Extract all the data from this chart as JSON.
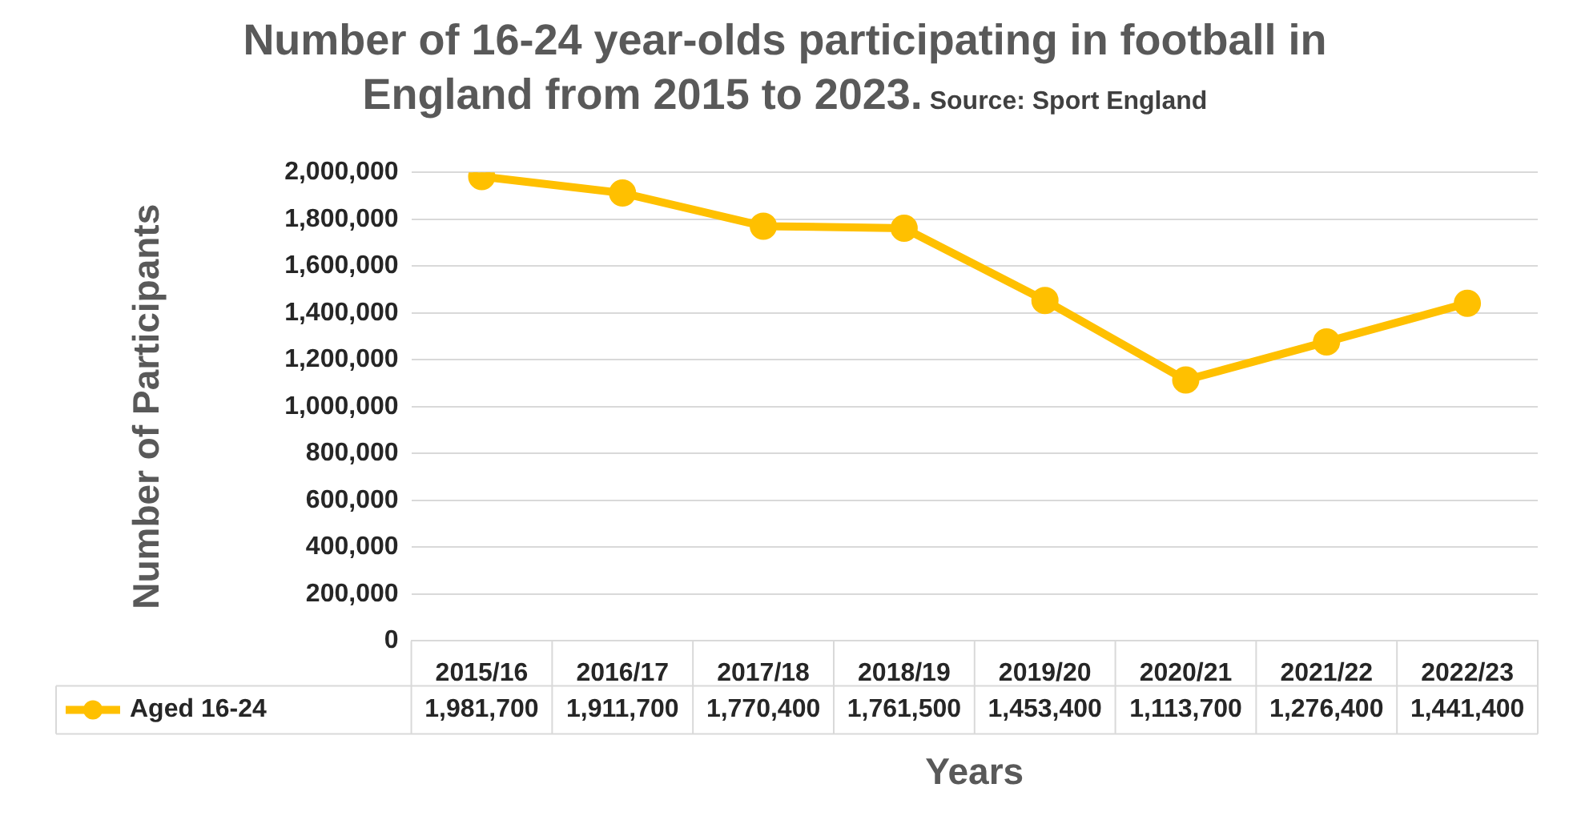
{
  "chart_data": {
    "type": "line",
    "title": "Number of 16-24 year-olds participating in football in England from 2015 to 2023.",
    "annotations": [
      "Source: Sport England"
    ],
    "xlabel": "Years",
    "ylabel": "Number of Participants",
    "categories": [
      "2015/16",
      "2016/17",
      "2017/18",
      "2018/19",
      "2019/20",
      "2020/21",
      "2021/22",
      "2022/23"
    ],
    "series": [
      {
        "name": "Aged 16-24",
        "color": "#ffc000",
        "values": [
          1981700,
          1911700,
          1770400,
          1761500,
          1453400,
          1113700,
          1276400,
          1441400
        ],
        "value_labels": [
          "1,981,700",
          "1,911,700",
          "1,770,400",
          "1,761,500",
          "1,453,400",
          "1,113,700",
          "1,276,400",
          "1,441,400"
        ]
      }
    ],
    "ylim": [
      0,
      2000000
    ],
    "yticks": [
      0,
      {
        "value": 200000,
        "label": "200,000"
      },
      {
        "value": 400000,
        "label": "400,000"
      },
      {
        "value": 600000,
        "label": "600,000"
      },
      {
        "value": 800000,
        "label": "800,000"
      },
      {
        "value": 1000000,
        "label": "1,000,000"
      },
      {
        "value": 1200000,
        "label": "1,200,000"
      },
      {
        "value": 1400000,
        "label": "1,400,000"
      },
      {
        "value": 1600000,
        "label": "1,600,000"
      },
      {
        "value": 1800000,
        "label": "1,800,000"
      },
      {
        "value": 2000000,
        "label": "2,000,000"
      }
    ],
    "grid": "y",
    "legend": "bottom",
    "marker": "circle",
    "line_style": "solid"
  }
}
